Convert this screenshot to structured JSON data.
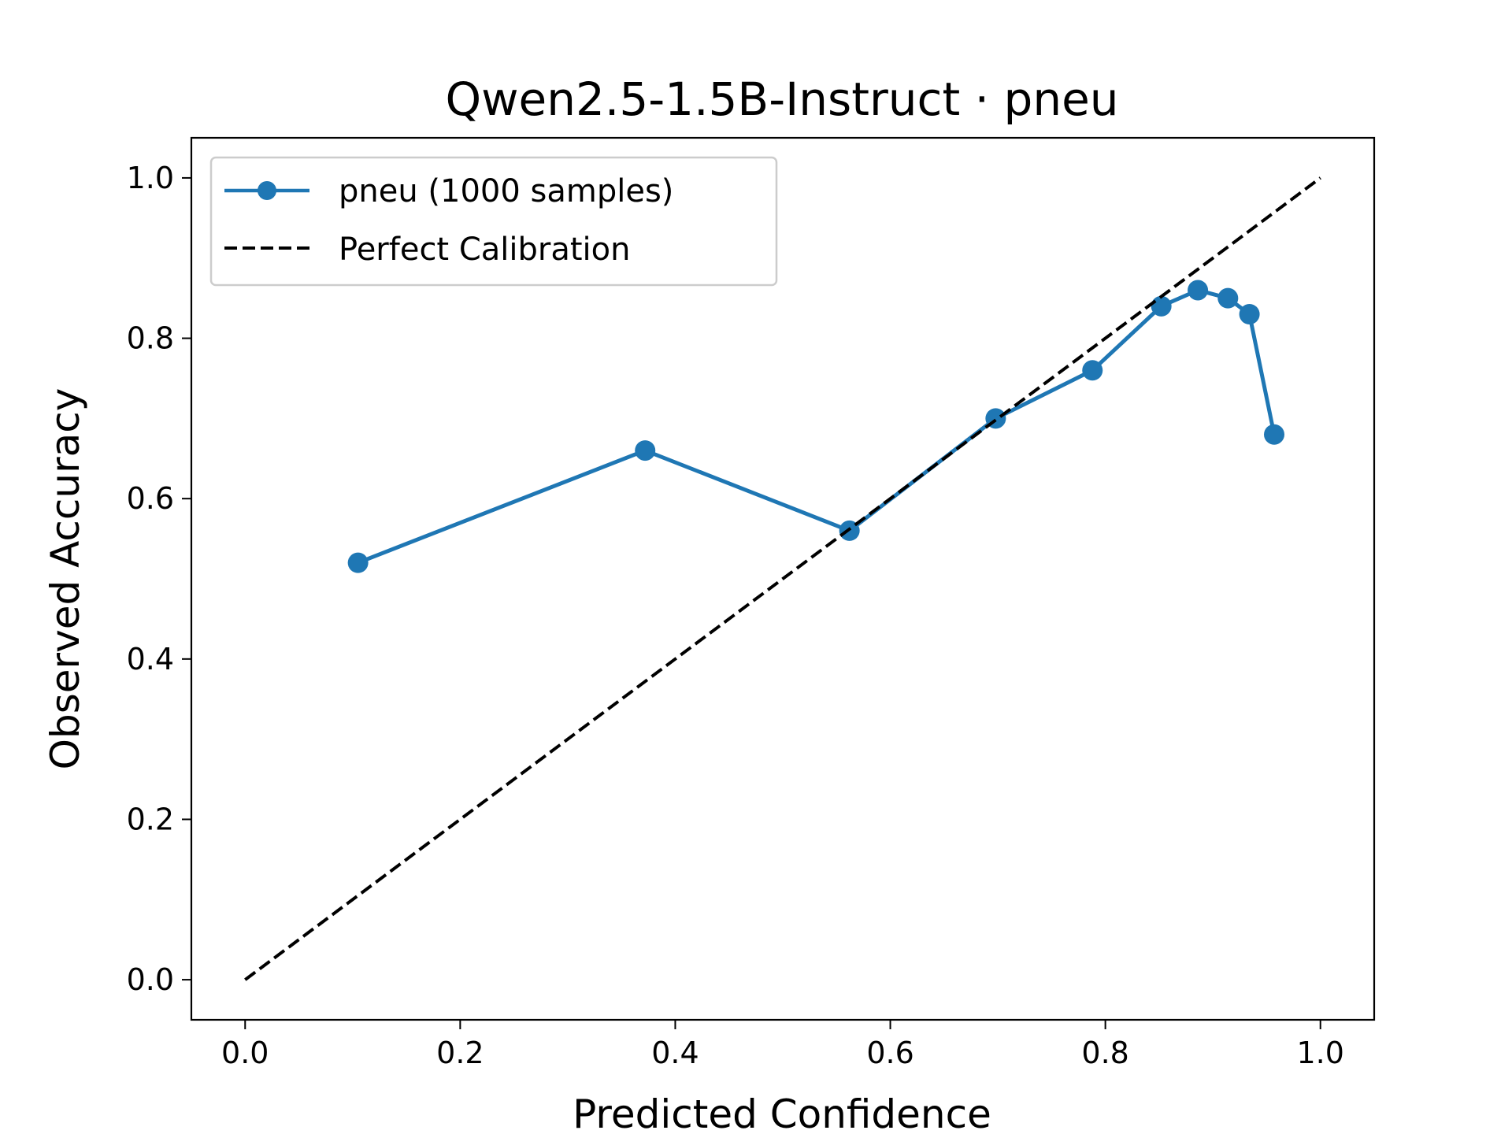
{
  "chart_data": {
    "type": "line",
    "title": "Qwen2.5-1.5B-Instruct · pneu",
    "xlabel": "Predicted Confidence",
    "ylabel": "Observed Accuracy",
    "xlim": [
      -0.05,
      1.05
    ],
    "ylim": [
      -0.05,
      1.05
    ],
    "xticks": [
      "0.0",
      "0.2",
      "0.4",
      "0.6",
      "0.8",
      "1.0"
    ],
    "yticks": [
      "0.0",
      "0.2",
      "0.4",
      "0.6",
      "0.8",
      "1.0"
    ],
    "grid": false,
    "legend_position": "upper-left",
    "series": [
      {
        "name": "pneu (1000 samples)",
        "color": "#1f77b4",
        "style": "solid-with-circle-markers",
        "x": [
          0.105,
          0.372,
          0.562,
          0.698,
          0.788,
          0.852,
          0.886,
          0.914,
          0.934,
          0.957
        ],
        "y": [
          0.52,
          0.66,
          0.56,
          0.7,
          0.76,
          0.84,
          0.86,
          0.85,
          0.83,
          0.68
        ]
      },
      {
        "name": "Perfect Calibration",
        "color": "#000000",
        "style": "dashed",
        "x": [
          0.0,
          1.0
        ],
        "y": [
          0.0,
          1.0
        ]
      }
    ]
  }
}
